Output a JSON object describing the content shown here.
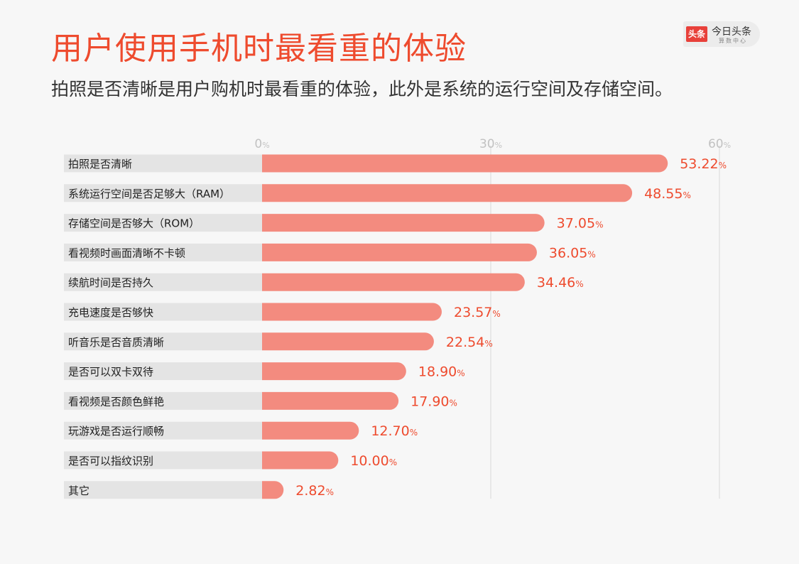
{
  "title": "用户使用手机时最看重的体验",
  "subtitle": "拍照是否清晰是用户购机时最看重的体验，此外是系统的运行空间及存储空间。",
  "logo": {
    "badge": "头条",
    "name": "今日头条",
    "sub": "算数中心"
  },
  "colors": {
    "bar": "#f38b7f",
    "label_bg": "#e4e4e4",
    "value": "#ee4b2e",
    "title": "#ee4b2e",
    "grid": "#d8d8d8"
  },
  "chart_data": {
    "type": "bar",
    "orientation": "horizontal",
    "xlim": [
      0,
      60
    ],
    "ticks": [
      0,
      30,
      60
    ],
    "tick_suffix": "%",
    "grid": true,
    "categories": [
      "拍照是否清晰",
      "系统运行空间是否足够大（RAM）",
      "存储空间是否够大（ROM）",
      "看视频时画面清晰不卡顿",
      "续航时间是否持久",
      "充电速度是否够快",
      "听音乐是否音质清晰",
      "是否可以双卡双待",
      "看视频是否颜色鲜艳",
      "玩游戏是否运行顺畅",
      "是否可以指纹识别",
      "其它"
    ],
    "values": [
      53.22,
      48.55,
      37.05,
      36.05,
      34.46,
      23.57,
      22.54,
      18.9,
      17.9,
      12.7,
      10.0,
      2.82
    ],
    "value_labels": [
      "53.22",
      "48.55",
      "37.05",
      "36.05",
      "34.46",
      "23.57",
      "22.54",
      "18.90",
      "17.90",
      "12.70",
      "10.00",
      "2.82"
    ]
  }
}
